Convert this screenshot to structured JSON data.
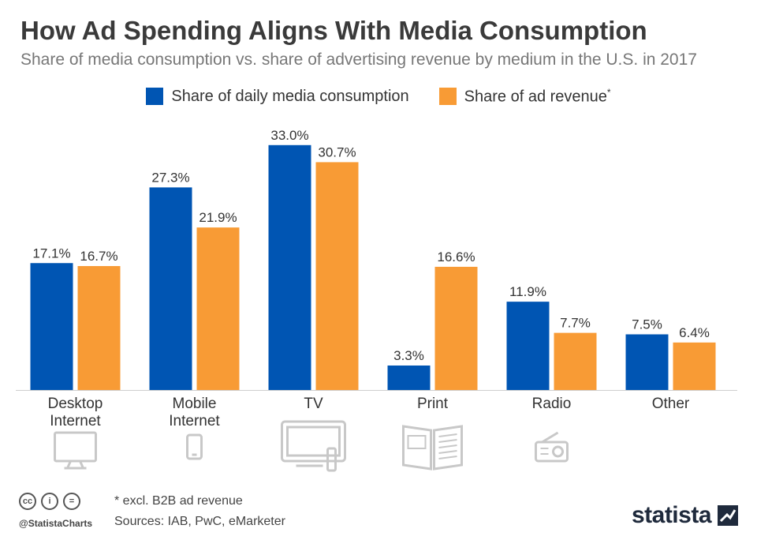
{
  "title": "How Ad Spending Aligns With Media Consumption",
  "subtitle": "Share of media consumption vs. share of advertising revenue by medium in the U.S. in 2017",
  "legend": {
    "series1": "Share of daily media consumption",
    "series2": "Share of ad revenue",
    "series2_mark": "*"
  },
  "colors": {
    "series1": "#0055b3",
    "series2": "#f89b35",
    "icon": "#c8c8c8",
    "axis": "#cfcfcf"
  },
  "chart_data": {
    "type": "bar",
    "title": "How Ad Spending Aligns With Media Consumption",
    "xlabel": "",
    "ylabel": "",
    "ylim": [
      0,
      35
    ],
    "categories": [
      [
        "Desktop",
        "Internet"
      ],
      [
        "Mobile",
        "Internet"
      ],
      [
        "TV"
      ],
      [
        "Print"
      ],
      [
        "Radio"
      ],
      [
        "Other"
      ]
    ],
    "icons": [
      "monitor-icon",
      "smartphone-icon",
      "tv-icon",
      "newspaper-icon",
      "radio-icon",
      ""
    ],
    "series": [
      {
        "name": "Share of daily media consumption",
        "values": [
          17.1,
          27.3,
          33.0,
          3.3,
          11.9,
          7.5
        ],
        "labels": [
          "17.1%",
          "27.3%",
          "33.0%",
          "3.3%",
          "11.9%",
          "7.5%"
        ]
      },
      {
        "name": "Share of ad revenue",
        "values": [
          16.7,
          21.9,
          30.7,
          16.6,
          7.7,
          6.4
        ],
        "labels": [
          "16.7%",
          "21.9%",
          "30.7%",
          "16.6%",
          "7.7%",
          "6.4%"
        ]
      }
    ]
  },
  "footer": {
    "note": "* excl. B2B ad revenue",
    "sources": "Sources: IAB, PwC, eMarketer",
    "handle": "@StatistaCharts",
    "brand": "statista",
    "cc": [
      "cc",
      "i",
      "="
    ]
  }
}
